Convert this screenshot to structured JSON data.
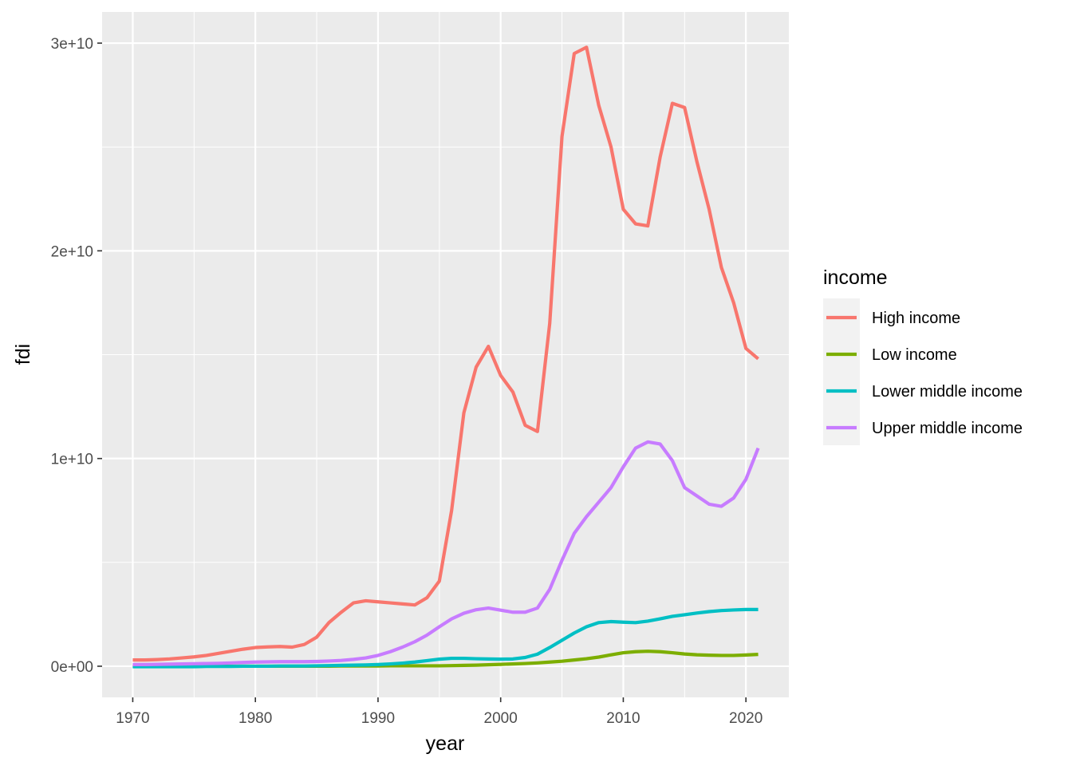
{
  "chart_data": {
    "type": "line",
    "title": "",
    "xlabel": "year",
    "ylabel": "fdi",
    "xlim": [
      1967.5,
      2023.5
    ],
    "ylim": [
      -1500000000,
      31500000000
    ],
    "x_ticks": [
      1970,
      1980,
      1990,
      2000,
      2010,
      2020
    ],
    "x_tick_labels": [
      "1970",
      "1980",
      "1990",
      "2000",
      "2010",
      "2020"
    ],
    "y_ticks": [
      0,
      10000000000,
      20000000000,
      30000000000
    ],
    "y_tick_labels": [
      "0e+00",
      "1e+10",
      "2e+10",
      "3e+10"
    ],
    "grid": true,
    "legend": {
      "title": "income",
      "position": "right"
    },
    "x": [
      1970,
      1971,
      1972,
      1973,
      1974,
      1975,
      1976,
      1977,
      1978,
      1979,
      1980,
      1981,
      1982,
      1983,
      1984,
      1985,
      1986,
      1987,
      1988,
      1989,
      1990,
      1991,
      1992,
      1993,
      1994,
      1995,
      1996,
      1997,
      1998,
      1999,
      2000,
      2001,
      2002,
      2003,
      2004,
      2005,
      2006,
      2007,
      2008,
      2009,
      2010,
      2011,
      2012,
      2013,
      2014,
      2015,
      2016,
      2017,
      2018,
      2019,
      2020,
      2021
    ],
    "series": [
      {
        "name": "High income",
        "color": "#F8766D",
        "values": [
          300000000.0,
          300000000.0,
          320000000.0,
          350000000.0,
          400000000.0,
          450000000.0,
          520000000.0,
          620000000.0,
          720000000.0,
          820000000.0,
          900000000.0,
          930000000.0,
          950000000.0,
          920000000.0,
          1050000000.0,
          1400000000.0,
          2100000000.0,
          2600000000.0,
          3050000000.0,
          3150000000.0,
          3100000000.0,
          3050000000.0,
          3000000000.0,
          2950000000.0,
          3300000000.0,
          4100000000.0,
          7500000000.0,
          12200000000.0,
          14400000000.0,
          15400000000.0,
          14000000000.0,
          13200000000.0,
          11600000000.0,
          11300000000.0,
          16500000000.0,
          25500000000.0,
          29500000000.0,
          29800000000.0,
          27000000000.0,
          25000000000.0,
          22000000000.0,
          21300000000.0,
          21200000000.0,
          24500000000.0,
          27100000000.0,
          26900000000.0,
          24300000000.0,
          22000000000.0,
          19200000000.0,
          17500000000.0,
          15300000000.0,
          14800000000.0
        ]
      },
      {
        "name": "Low income",
        "color": "#7CAE00",
        "values": [
          0.0,
          0.0,
          0.0,
          0.0,
          0.0,
          0.0,
          0.0,
          0.0,
          0.0,
          0.0,
          0.0,
          0.0,
          0.0,
          0.0,
          0.0,
          0.0,
          0.0,
          10000000.0,
          10000000.0,
          10000000.0,
          10000000.0,
          20000000.0,
          20000000.0,
          20000000.0,
          20000000.0,
          20000000.0,
          30000000.0,
          40000000.0,
          50000000.0,
          70000000.0,
          90000000.0,
          110000000.0,
          130000000.0,
          160000000.0,
          200000000.0,
          240000000.0,
          300000000.0,
          360000000.0,
          440000000.0,
          550000000.0,
          650000000.0,
          700000000.0,
          720000000.0,
          700000000.0,
          650000000.0,
          590000000.0,
          550000000.0,
          530000000.0,
          520000000.0,
          520000000.0,
          540000000.0,
          570000000.0
        ]
      },
      {
        "name": "Lower middle income",
        "color": "#00BFC4",
        "values": [
          -20000000.0,
          -20000000.0,
          -20000000.0,
          -20000000.0,
          -20000000.0,
          -20000000.0,
          -10000000.0,
          -10000000.0,
          -10000000.0,
          0.0,
          0.0,
          0.0,
          10000000.0,
          10000000.0,
          10000000.0,
          20000000.0,
          30000000.0,
          40000000.0,
          50000000.0,
          60000000.0,
          80000000.0,
          110000000.0,
          150000000.0,
          200000000.0,
          270000000.0,
          340000000.0,
          380000000.0,
          380000000.0,
          360000000.0,
          350000000.0,
          340000000.0,
          350000000.0,
          420000000.0,
          580000000.0,
          900000000.0,
          1250000000.0,
          1600000000.0,
          1900000000.0,
          2100000000.0,
          2150000000.0,
          2120000000.0,
          2100000000.0,
          2170000000.0,
          2280000000.0,
          2400000000.0,
          2480000000.0,
          2560000000.0,
          2630000000.0,
          2680000000.0,
          2710000000.0,
          2730000000.0,
          2730000000.0
        ]
      },
      {
        "name": "Upper middle income",
        "color": "#C77CFF",
        "values": [
          80000000.0,
          80000000.0,
          90000000.0,
          100000000.0,
          110000000.0,
          120000000.0,
          130000000.0,
          140000000.0,
          160000000.0,
          180000000.0,
          200000000.0,
          210000000.0,
          220000000.0,
          220000000.0,
          220000000.0,
          230000000.0,
          250000000.0,
          280000000.0,
          330000000.0,
          400000000.0,
          520000000.0,
          700000000.0,
          920000000.0,
          1180000000.0,
          1500000000.0,
          1900000000.0,
          2280000000.0,
          2550000000.0,
          2720000000.0,
          2800000000.0,
          2700000000.0,
          2600000000.0,
          2600000000.0,
          2800000000.0,
          3700000000.0,
          5100000000.0,
          6400000000.0,
          7200000000.0,
          7900000000.0,
          8600000000.0,
          9600000000.0,
          10500000000.0,
          10800000000.0,
          10700000000.0,
          9900000000.0,
          8600000000.0,
          8200000000.0,
          7800000000.0,
          7700000000.0,
          8100000000.0,
          9000000000.0,
          10500000000.0
        ]
      }
    ]
  }
}
